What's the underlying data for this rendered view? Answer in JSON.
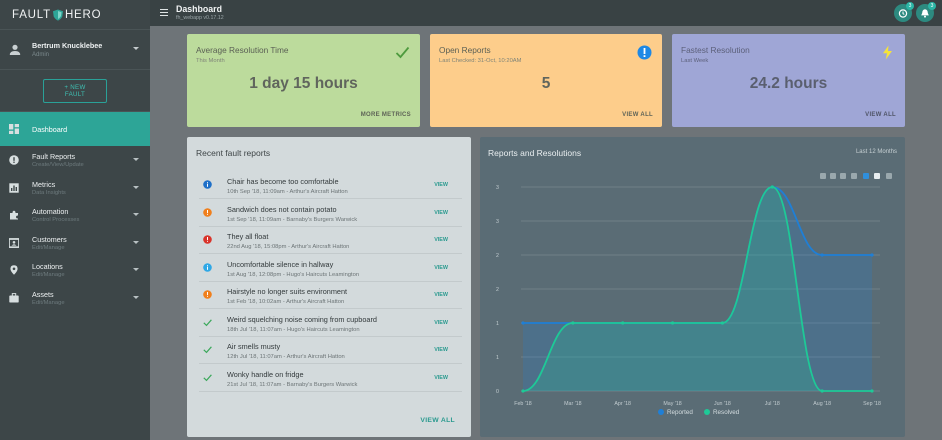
{
  "brand": {
    "left": "FAULT",
    "right": "HERO"
  },
  "user": {
    "name": "Bertrum Knucklebee",
    "role": "Admin"
  },
  "new_fault_label": "+ NEW FAULT",
  "nav": [
    {
      "label": "Dashboard",
      "sub": "",
      "icon": "dashboard-icon",
      "active": true
    },
    {
      "label": "Fault Reports",
      "sub": "Create/View/Update",
      "icon": "alert-circle-icon"
    },
    {
      "label": "Metrics",
      "sub": "Data Insights",
      "icon": "bar-chart-icon"
    },
    {
      "label": "Automation",
      "sub": "Control Processes",
      "icon": "puzzle-icon"
    },
    {
      "label": "Customers",
      "sub": "Edit/Manage",
      "icon": "contact-card-icon"
    },
    {
      "label": "Locations",
      "sub": "Edit/Manage",
      "icon": "location-pin-icon"
    },
    {
      "label": "Assets",
      "sub": "Edit/Manage",
      "icon": "briefcase-icon"
    }
  ],
  "topbar": {
    "title": "Dashboard",
    "version": "fh_webapp v0.17.12",
    "badge1": "3",
    "badge2": "3"
  },
  "cards": {
    "avg": {
      "title": "Average Resolution Time",
      "sub": "This Month",
      "value": "1 day 15 hours",
      "link": "MORE METRICS",
      "icon": "check-icon"
    },
    "open": {
      "title": "Open Reports",
      "sub": "Last Checked: 31-Oct, 10:20AM",
      "value": "5",
      "link": "VIEW ALL",
      "icon": "exclamation-circle-icon"
    },
    "fast": {
      "title": "Fastest Resolution",
      "sub": "Last Week",
      "value": "24.2 hours",
      "link": "VIEW ALL",
      "icon": "lightning-bolt-icon"
    }
  },
  "recent": {
    "title": "Recent fault reports",
    "view_label": "VIEW",
    "view_all": "VIEW ALL",
    "reports": [
      {
        "title": "Chair has become too comfortable",
        "meta": "10th Sep '18, 11:09am - Arthur's Aircraft Hatton",
        "status": "info",
        "color": "#1e6fc8"
      },
      {
        "title": "Sandwich does not contain potato",
        "meta": "1st Sep '18, 11:09am - Barnaby's Burgers Warwick",
        "status": "warning",
        "color": "#f07f1c"
      },
      {
        "title": "They all float",
        "meta": "22nd Aug '18, 15:08pm - Arthur's Aircraft Hatton",
        "status": "error",
        "color": "#d9342b"
      },
      {
        "title": "Uncomfortable silence in hallway",
        "meta": "1st Aug '18, 12:08pm - Hugo's Haircuts Leamington",
        "status": "info",
        "color": "#2fa8e6"
      },
      {
        "title": "Hairstyle no longer suits environment",
        "meta": "1st Feb '18, 10:02am - Arthur's Aircraft Hatton",
        "status": "warning",
        "color": "#f07f1c"
      },
      {
        "title": "Weird squelching noise coming from cupboard",
        "meta": "18th Jul '18, 11:07am - Hugo's Haircuts Leamington",
        "status": "resolved",
        "color": "#3aa85a"
      },
      {
        "title": "Air smells musty",
        "meta": "12th Jul '18, 11:07am - Arthur's Aircraft Hatton",
        "status": "resolved",
        "color": "#3aa85a"
      },
      {
        "title": "Wonky handle on fridge",
        "meta": "21st Jul '18, 11:07am - Barnaby's Burgers Warwick",
        "status": "resolved",
        "color": "#3aa85a"
      }
    ]
  },
  "chart_title": "Reports and Resolutions",
  "chart_range": "Last 12 Months",
  "chart_data": {
    "type": "area",
    "categories": [
      "Feb '18",
      "Mar '18",
      "Apr '18",
      "May '18",
      "Jun '18",
      "Jul '18",
      "Aug '18",
      "Sep '18"
    ],
    "series": [
      {
        "name": "Reported",
        "values": [
          1,
          1,
          1,
          1,
          1,
          3,
          2,
          2
        ],
        "color": "#1f7fd6"
      },
      {
        "name": "Resolved",
        "values": [
          0,
          1,
          1,
          1,
          1,
          3,
          0,
          0
        ],
        "color": "#1ec997"
      }
    ],
    "yticks": [
      "0",
      "1",
      "1",
      "2",
      "2",
      "3",
      "3"
    ],
    "ylim": [
      0,
      3
    ],
    "legend": "bottom",
    "grid": true
  },
  "colors": {
    "accent": "#2da597",
    "sidebar": "#3d4648"
  }
}
